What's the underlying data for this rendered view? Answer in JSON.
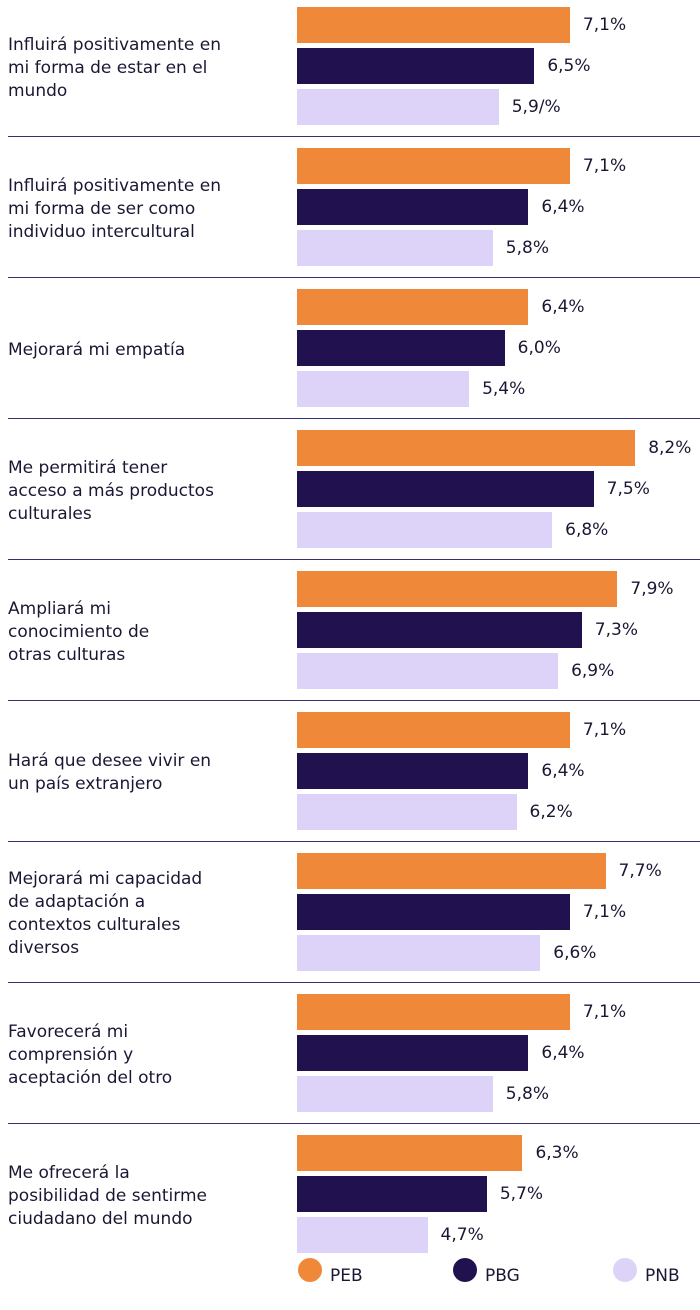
{
  "chart_data": {
    "type": "bar",
    "orientation": "horizontal",
    "categories": [
      [
        "Influirá positivamente en",
        "mi forma de estar en el",
        "mundo"
      ],
      [
        "Influirá positivamente en",
        "mi forma de ser como",
        "individuo intercultural"
      ],
      [
        "Mejorará mi empatía"
      ],
      [
        "Me permitirá tener",
        "acceso a más productos",
        "culturales"
      ],
      [
        "Ampliará mi",
        "conocimiento de",
        "otras culturas"
      ],
      [
        "Hará que desee vivir en",
        "un país extranjero"
      ],
      [
        "Mejorará mi capacidad",
        "de adaptación a",
        "contextos culturales",
        "diversos"
      ],
      [
        "Favorecerá mi",
        "comprensión y",
        "aceptación del otro"
      ],
      [
        "Me ofrecerá la",
        "posibilidad de sentirme",
        "ciudadano del mundo"
      ]
    ],
    "series": [
      {
        "name": "PEB",
        "color": "#f0883a",
        "values": [
          7.1,
          7.1,
          6.4,
          8.2,
          7.9,
          7.1,
          7.7,
          7.1,
          6.3
        ],
        "value_labels": [
          "7,1%",
          "7,1%",
          "6,4%",
          "8,2%",
          "7,9%",
          "7,1%",
          "7,7%",
          "7,1%",
          "6,3%"
        ]
      },
      {
        "name": "PBG",
        "color": "#22114f",
        "values": [
          6.5,
          6.4,
          6.0,
          7.5,
          7.3,
          6.4,
          7.1,
          6.4,
          5.7
        ],
        "value_labels": [
          "6,5%",
          "6,4%",
          "6,0%",
          "7,5%",
          "7,3%",
          "6,4%",
          "7,1%",
          "6,4%",
          "5,7%"
        ]
      },
      {
        "name": "PNB",
        "color": "#ddd3f8",
        "values": [
          5.9,
          5.8,
          5.4,
          6.8,
          6.9,
          6.2,
          6.6,
          5.8,
          4.7
        ],
        "value_labels": [
          "5,9/%",
          "5,8%",
          "5,4%",
          "6,8%",
          "6,9%",
          "6,2%",
          "6,6%",
          "5,8%",
          "4,7%"
        ]
      }
    ],
    "xlim": [
      2.5,
      8.5
    ],
    "legend": "bottom"
  }
}
